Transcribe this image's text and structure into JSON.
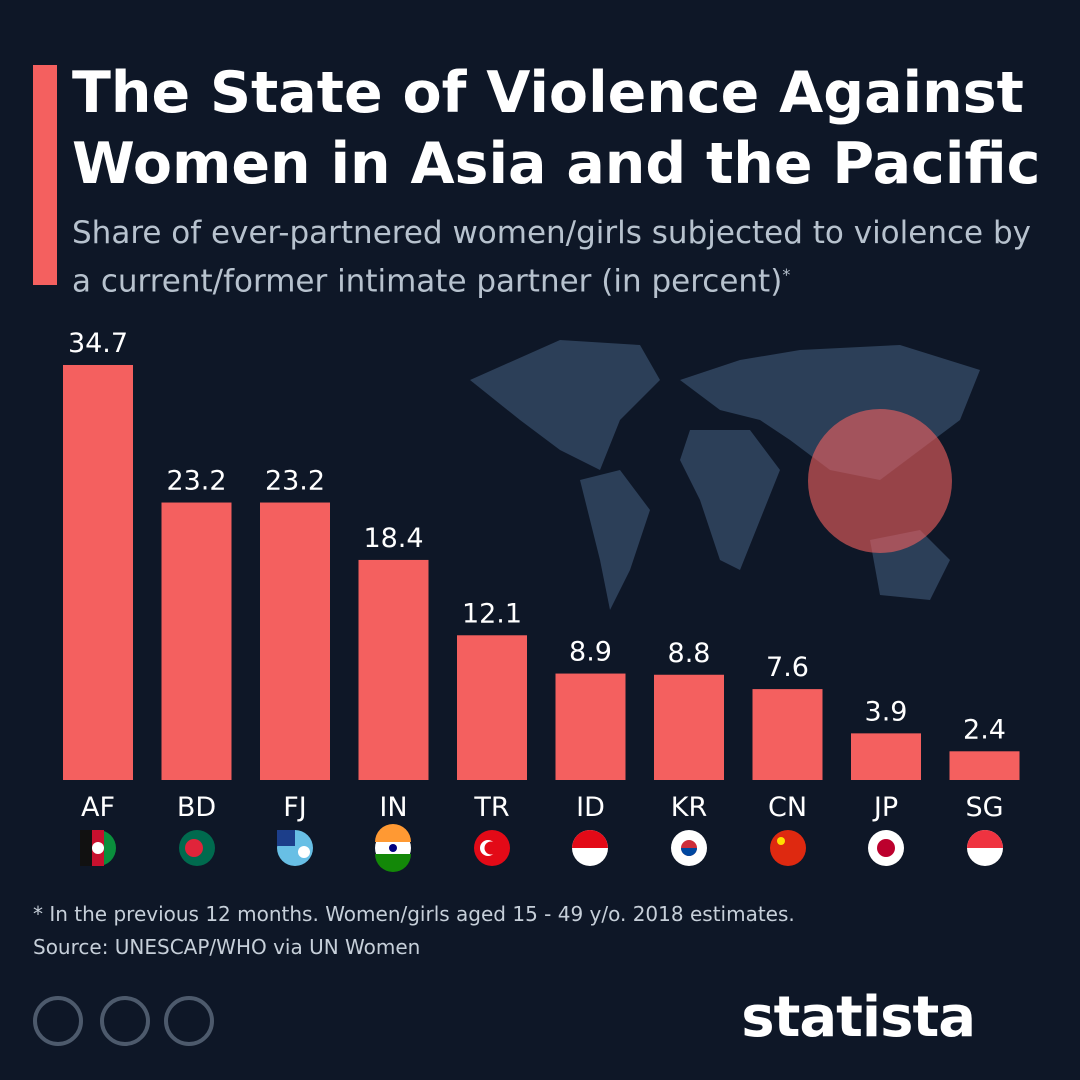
{
  "chart_data": {
    "type": "bar",
    "title": "The State of Violence Against Women in Asia and the Pacific",
    "subtitle": "Share of ever-partnered women/girls subjected to violence by a current/former intimate partner (in percent)",
    "subtitle_mark": "*",
    "categories": [
      "AF",
      "BD",
      "FJ",
      "IN",
      "TR",
      "ID",
      "KR",
      "CN",
      "JP",
      "SG"
    ],
    "values": [
      34.7,
      23.2,
      23.2,
      18.4,
      12.1,
      8.9,
      8.8,
      7.6,
      3.9,
      2.4
    ],
    "color": "#f4605f",
    "note": "* In the previous 12 months. Women/girls aged 15 - 49 y/o. 2018 estimates.",
    "source": "Source: UNESCAP/WHO via UN Women",
    "brand": "statista"
  }
}
